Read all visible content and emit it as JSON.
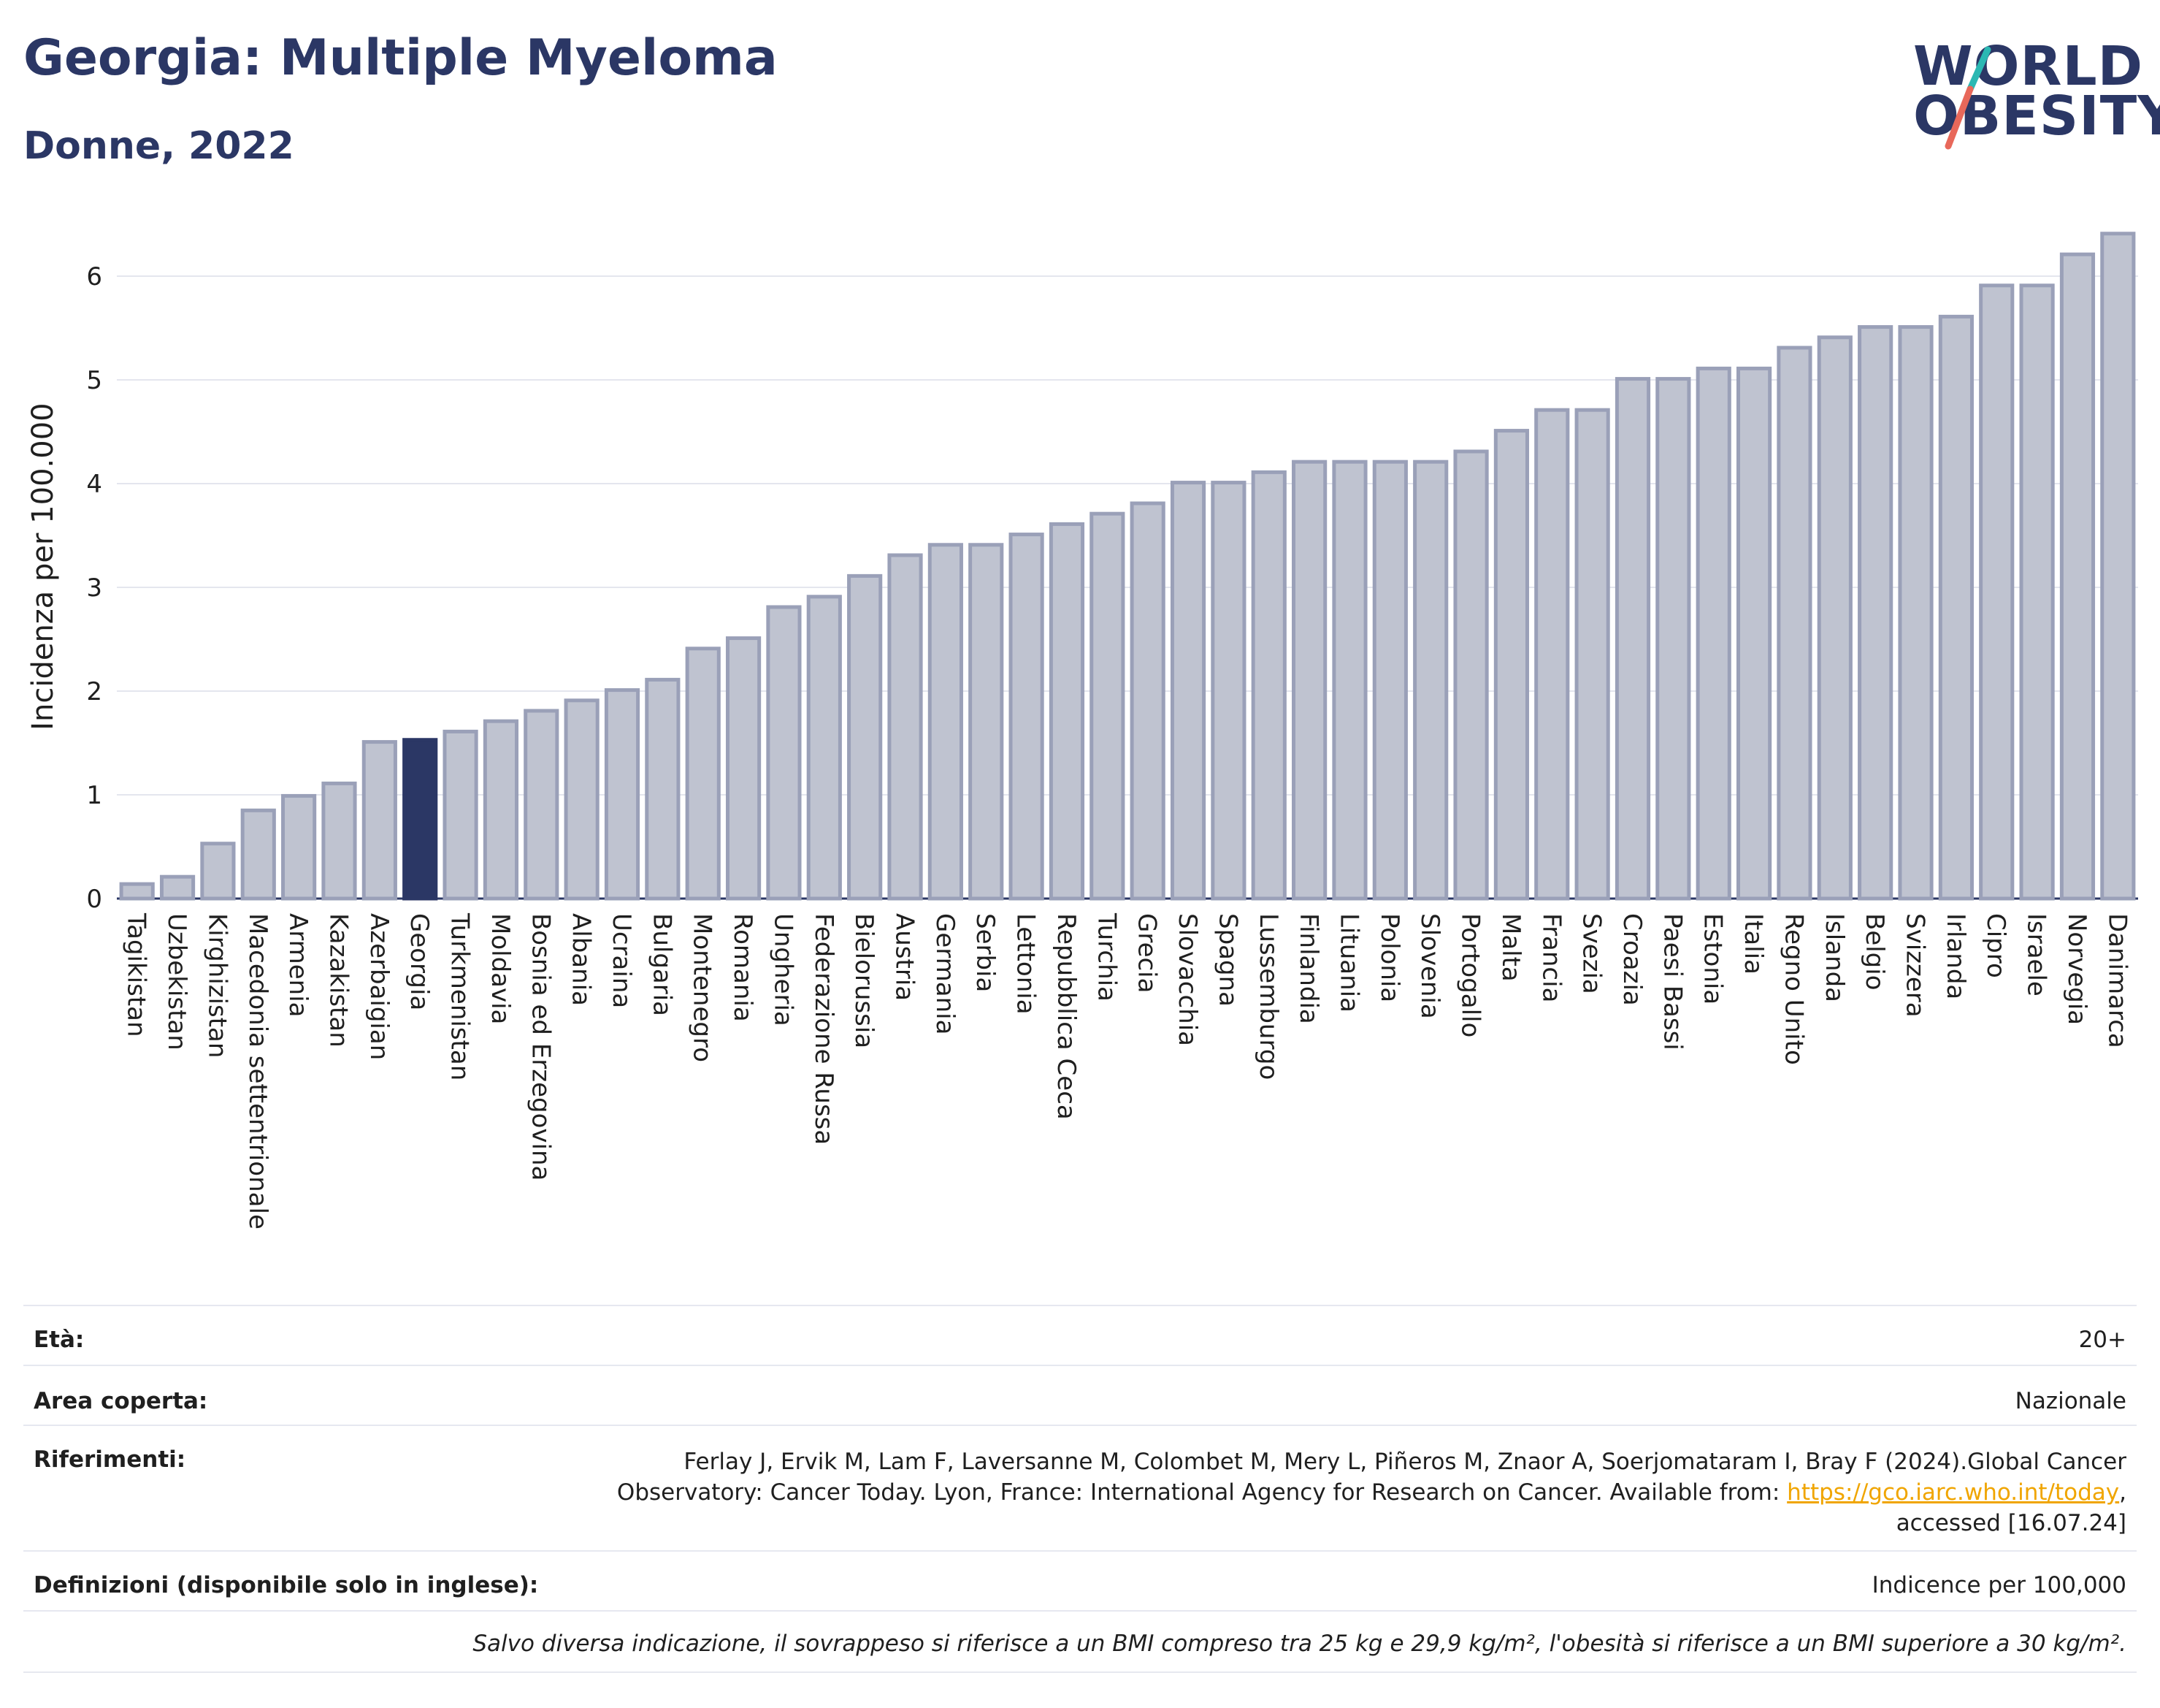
{
  "header": {
    "title": "Georgia: Multiple Myeloma",
    "subtitle": "Donne, 2022"
  },
  "logo": {
    "line1": "WORLD",
    "line2": "OBESITY",
    "text_color": "#2b3765",
    "slash_colors": [
      "#2bb8b3",
      "#e8685a"
    ]
  },
  "chart_data": {
    "type": "bar",
    "ylabel": "Incidenza per 100.000",
    "ylim": [
      0,
      6.4
    ],
    "yticks": [
      0,
      1,
      2,
      3,
      4,
      5,
      6
    ],
    "grid": true,
    "highlight": "Georgia",
    "colors": {
      "bar": "#bfc3d0",
      "bar_border": "#9aa0b8",
      "highlight": "#2b3765"
    },
    "categories": [
      "Tagikistan",
      "Uzbekistan",
      "Kirghizistan",
      "Macedonia settentrionale",
      "Armenia",
      "Kazakistan",
      "Azerbaigian",
      "Georgia",
      "Turkmenistan",
      "Moldavia",
      "Bosnia ed Erzegovina",
      "Albania",
      "Ucraina",
      "Bulgaria",
      "Montenegro",
      "Romania",
      "Ungheria",
      "Federazione Russa",
      "Bielorussia",
      "Austria",
      "Germania",
      "Serbia",
      "Lettonia",
      "Repubblica Ceca",
      "Turchia",
      "Grecia",
      "Slovacchia",
      "Spagna",
      "Lussemburgo",
      "Finlandia",
      "Lituania",
      "Polonia",
      "Slovenia",
      "Portogallo",
      "Malta",
      "Francia",
      "Svezia",
      "Croazia",
      "Paesi Bassi",
      "Estonia",
      "Italia",
      "Regno Unito",
      "Islanda",
      "Belgio",
      "Svizzera",
      "Irlanda",
      "Cipro",
      "Israele",
      "Norvegia",
      "Danimarca"
    ],
    "values": [
      0.14,
      0.21,
      0.53,
      0.85,
      0.99,
      1.11,
      1.51,
      1.53,
      1.61,
      1.71,
      1.81,
      1.91,
      2.01,
      2.11,
      2.41,
      2.51,
      2.81,
      2.91,
      3.11,
      3.31,
      3.41,
      3.41,
      3.51,
      3.61,
      3.71,
      3.81,
      4.01,
      4.01,
      4.11,
      4.21,
      4.21,
      4.21,
      4.21,
      4.31,
      4.51,
      4.71,
      4.71,
      5.01,
      5.01,
      5.11,
      5.11,
      5.31,
      5.41,
      5.51,
      5.51,
      5.61,
      5.91,
      5.91,
      6.21,
      6.41
    ]
  },
  "info": {
    "age_label": "Età:",
    "age_value": "20+",
    "area_label": "Area coperta:",
    "area_value": "Nazionale",
    "ref_label": "Riferimenti:",
    "ref_line1": "Ferlay J, Ervik M, Lam F, Laversanne M, Colombet M, Mery L, Piñeros M, Znaor A, Soerjomataram I, Bray F (2024).Global Cancer",
    "ref_line2_pre": "Observatory: Cancer Today. Lyon, France: International Agency for Research on Cancer. Available from: ",
    "ref_link": "https://gco.iarc.who.int/today",
    "ref_line2_post": ",",
    "ref_line3": "accessed [16.07.24]",
    "def_label": "Definizioni (disponibile solo in inglese):",
    "def_value": "Indicence per 100,000",
    "note": "Salvo diversa indicazione, il sovrappeso si riferisce a un BMI compreso tra 25 kg e 29,9 kg/m², l'obesità si riferisce a un BMI superiore a 30 kg/m²."
  }
}
